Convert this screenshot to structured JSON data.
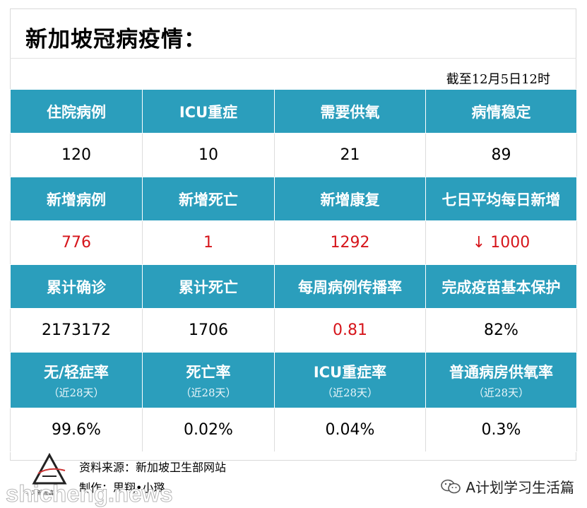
{
  "title": "新加坡冠病疫情：",
  "as_of": "截至12月5日12时",
  "rows": [
    {
      "headers": [
        {
          "label": "住院病例"
        },
        {
          "label": "ICU重症"
        },
        {
          "label": "需要供氧"
        },
        {
          "label": "病情稳定"
        }
      ],
      "values": [
        {
          "text": "120",
          "color": "#000000"
        },
        {
          "text": "10",
          "color": "#000000"
        },
        {
          "text": "21",
          "color": "#000000"
        },
        {
          "text": "89",
          "color": "#000000"
        }
      ]
    },
    {
      "headers": [
        {
          "label": "新增病例"
        },
        {
          "label": "新增死亡"
        },
        {
          "label": "新增康复"
        },
        {
          "label": "七日平均每日新增"
        }
      ],
      "values": [
        {
          "text": "776",
          "color": "#d6151b"
        },
        {
          "text": "1",
          "color": "#d6151b"
        },
        {
          "text": "1292",
          "color": "#d6151b"
        },
        {
          "text": "↓ 1000",
          "color": "#d6151b"
        }
      ]
    },
    {
      "headers": [
        {
          "label": "累计确诊"
        },
        {
          "label": "累计死亡"
        },
        {
          "label": "每周病例传播率"
        },
        {
          "label": "完成疫苗基本保护"
        }
      ],
      "values": [
        {
          "text": "2173172",
          "color": "#000000"
        },
        {
          "text": "1706",
          "color": "#000000"
        },
        {
          "text": "0.81",
          "color": "#d6151b"
        },
        {
          "text": "82%",
          "color": "#000000"
        }
      ]
    },
    {
      "headers": [
        {
          "label": "无/轻症率",
          "sub": "（近28天）"
        },
        {
          "label": "死亡率",
          "sub": "（近28天）"
        },
        {
          "label": "ICU重症率",
          "sub": "（近28天）"
        },
        {
          "label": "普通病房供氧率",
          "sub": "（近28天）"
        }
      ],
      "values": [
        {
          "text": "99.6%",
          "color": "#000000"
        },
        {
          "text": "0.02%",
          "color": "#000000"
        },
        {
          "text": "0.04%",
          "color": "#000000"
        },
        {
          "text": "0.3%",
          "color": "#000000"
        }
      ]
    }
  ],
  "footer": {
    "source": "资料来源：新加坡卫生部网站",
    "author": "制作：思翔•小璐",
    "logo_caption": "学习新城篇"
  },
  "watermarks": {
    "left": "shicheng.news",
    "right": "A计划学习生活篇",
    "right_icon": "wechat-icon"
  },
  "colors": {
    "header_bg": "#2b9ebc",
    "highlight_red": "#d6151b"
  }
}
